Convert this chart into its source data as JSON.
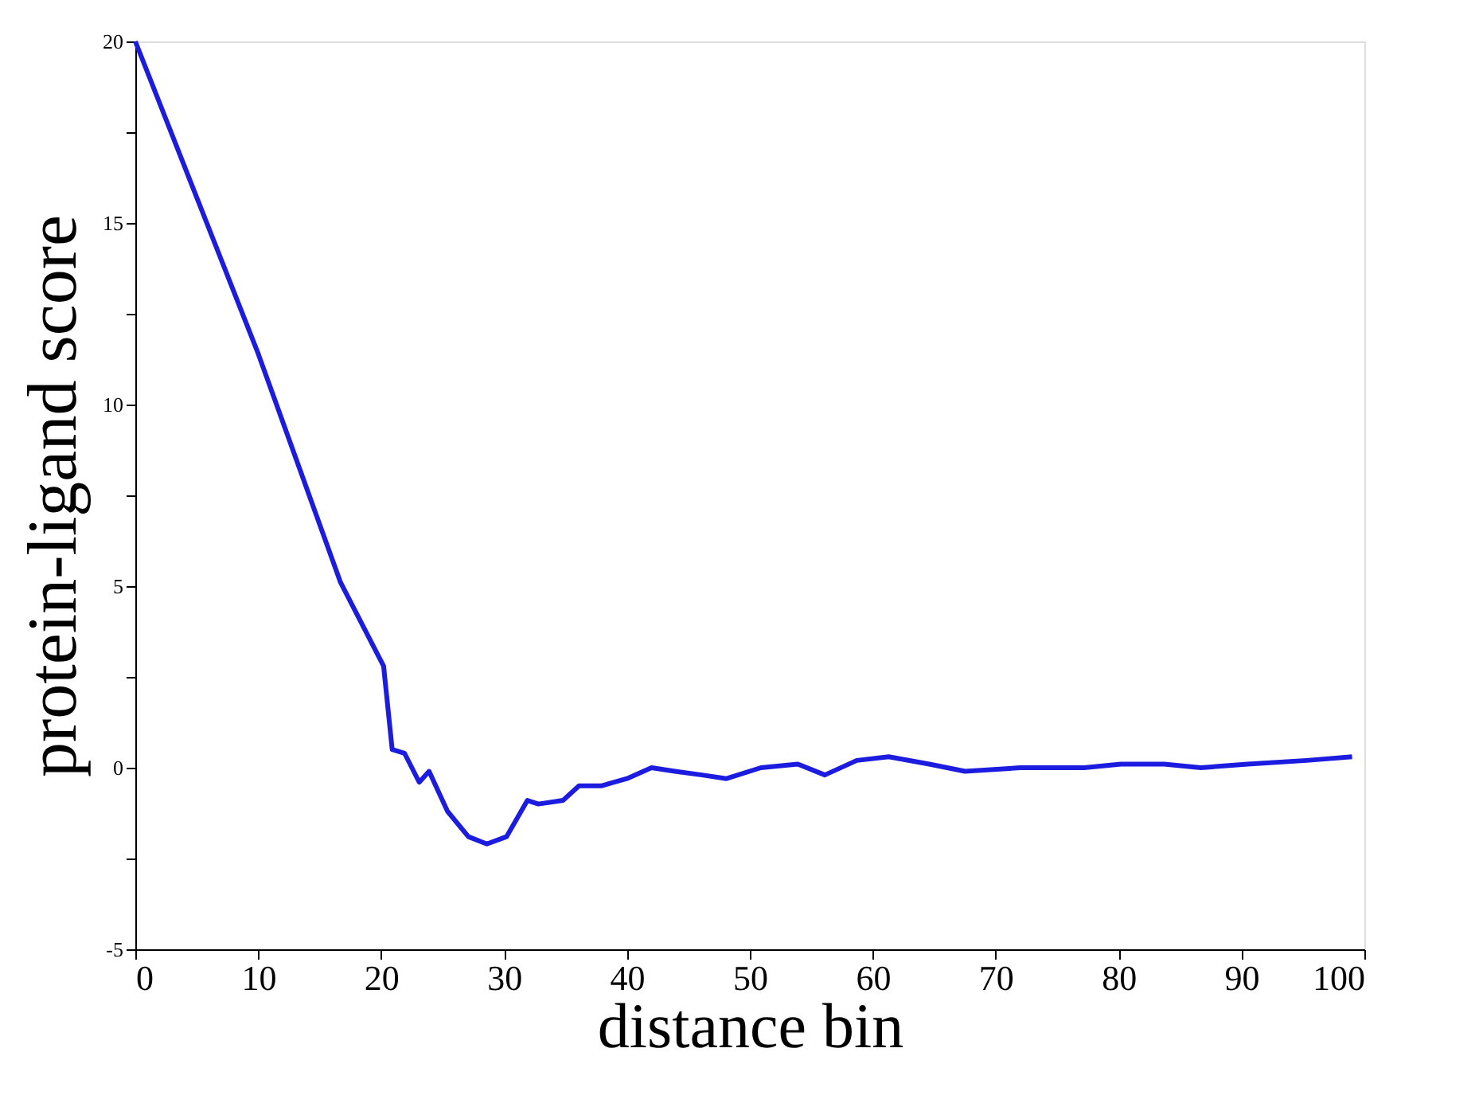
{
  "chart_data": {
    "type": "line",
    "xlabel": "distance bin",
    "ylabel": "protein-ligand score",
    "xlim": [
      0,
      100
    ],
    "xticks": [
      0,
      10,
      20,
      30,
      40,
      50,
      60,
      70,
      80,
      90,
      100
    ],
    "ylim": [
      -5,
      20
    ],
    "yticks": [
      -5,
      {
        "value": -2.5,
        "label": null
      },
      0,
      {
        "value": 2.5,
        "label": null
      },
      5,
      {
        "value": 7.5,
        "label": null
      },
      10,
      {
        "value": 12.5,
        "label": null
      },
      15,
      {
        "value": 17.5,
        "label": null
      },
      20
    ],
    "grid": false,
    "marker": "none",
    "line_style": "solid",
    "series": [
      {
        "color": "#1c1ce0",
        "x": [
          0,
          5,
          10,
          16.7,
          20.2,
          20.9,
          21.9,
          23.1,
          23.9,
          25.4,
          27.1,
          28.6,
          30.2,
          31.9,
          32.8,
          34.8,
          36.1,
          37.9,
          40.0,
          42.0,
          43.9,
          46.1,
          48.1,
          50.9,
          53.9,
          56.1,
          58.7,
          61.3,
          64.6,
          67.5,
          72.0,
          77.2,
          80.2,
          83.7,
          86.7,
          90.5,
          95.3,
          99
        ],
        "values": [
          20,
          15.7,
          11.4,
          5.1,
          2.8,
          0.5,
          0.4,
          -0.4,
          -0.1,
          -1.2,
          -1.9,
          -2.1,
          -1.9,
          -0.9,
          -1.0,
          -0.9,
          -0.5,
          -0.5,
          -0.3,
          0.0,
          -0.1,
          -0.2,
          -0.3,
          0.0,
          0.1,
          -0.2,
          0.2,
          0.3,
          0.1,
          -0.1,
          0.0,
          0.0,
          0.1,
          0.1,
          0.0,
          0.1,
          0.2,
          0.3
        ]
      }
    ]
  }
}
